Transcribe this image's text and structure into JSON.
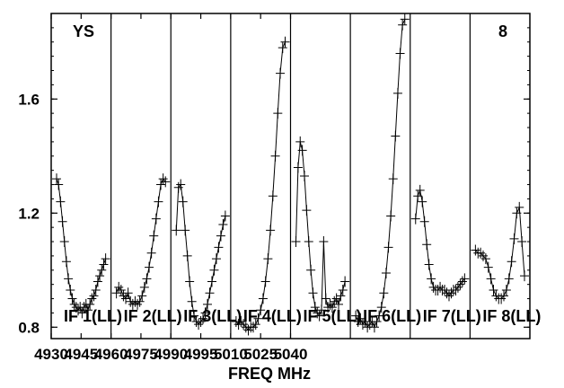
{
  "chart_data": {
    "type": "line",
    "title": "",
    "xlabel": "FREQ MHz",
    "ylabel": "",
    "corner_left_label": "YS",
    "corner_right_label": "8",
    "ylim": [
      0.76,
      1.9
    ],
    "yticks": [
      0.8,
      1.2,
      1.6
    ],
    "ytick_labels": [
      "0.8",
      "1.2",
      "1.6"
    ],
    "xtick_labels": [
      "4930",
      "4945",
      "4960",
      "4975",
      "4990",
      "4995",
      "5010",
      "5025",
      "5040"
    ],
    "grid": false,
    "legend": "none",
    "colors": {
      "line": "#000000",
      "marker": "#000000",
      "frame": "#000000",
      "background": "#ffffff"
    },
    "panels": [
      {
        "name": "IF 1(LL)",
        "points": [
          [
            4930.0,
            1.32
          ],
          [
            4930.5,
            1.3
          ],
          [
            4931.0,
            1.24
          ],
          [
            4931.5,
            1.17
          ],
          [
            4932.0,
            1.1
          ],
          [
            4932.5,
            1.03
          ],
          [
            4933.0,
            0.97
          ],
          [
            4933.5,
            0.93
          ],
          [
            4934.0,
            0.9
          ],
          [
            4934.5,
            0.88
          ],
          [
            4935.0,
            0.87
          ],
          [
            4935.5,
            0.86
          ],
          [
            4936.0,
            0.87
          ],
          [
            4936.5,
            0.85
          ],
          [
            4937.0,
            0.87
          ],
          [
            4937.5,
            0.88
          ],
          [
            4938.0,
            0.86
          ],
          [
            4938.5,
            0.88
          ],
          [
            4939.0,
            0.9
          ],
          [
            4939.5,
            0.91
          ],
          [
            4940.0,
            0.93
          ],
          [
            4940.5,
            0.96
          ],
          [
            4941.0,
            0.98
          ],
          [
            4941.5,
            1.0
          ],
          [
            4942.0,
            1.02
          ],
          [
            4942.5,
            1.04
          ]
        ]
      },
      {
        "name": "IF 2(LL)",
        "points": [
          [
            4945.5,
            0.92
          ],
          [
            4946.0,
            0.94
          ],
          [
            4946.5,
            0.93
          ],
          [
            4947.0,
            0.91
          ],
          [
            4947.5,
            0.9
          ],
          [
            4948.0,
            0.92
          ],
          [
            4948.5,
            0.89
          ],
          [
            4949.0,
            0.88
          ],
          [
            4949.5,
            0.89
          ],
          [
            4950.0,
            0.88
          ],
          [
            4950.5,
            0.89
          ],
          [
            4951.0,
            0.91
          ],
          [
            4951.5,
            0.94
          ],
          [
            4952.0,
            0.97
          ],
          [
            4952.5,
            1.01
          ],
          [
            4953.0,
            1.06
          ],
          [
            4953.5,
            1.12
          ],
          [
            4954.0,
            1.18
          ],
          [
            4954.5,
            1.24
          ],
          [
            4955.0,
            1.3
          ],
          [
            4955.5,
            1.32
          ],
          [
            4956.0,
            1.31
          ]
        ]
      },
      {
        "name": "IF 3(LL)",
        "points": [
          [
            4960.5,
            1.14
          ],
          [
            4961.0,
            1.29
          ],
          [
            4961.5,
            1.3
          ],
          [
            4962.0,
            1.24
          ],
          [
            4962.5,
            1.14
          ],
          [
            4963.0,
            1.05
          ],
          [
            4963.5,
            0.96
          ],
          [
            4964.0,
            0.89
          ],
          [
            4964.5,
            0.84
          ],
          [
            4965.0,
            0.82
          ],
          [
            4965.5,
            0.81
          ],
          [
            4966.0,
            0.82
          ],
          [
            4966.5,
            0.83
          ],
          [
            4967.0,
            0.85
          ],
          [
            4967.5,
            0.88
          ],
          [
            4968.0,
            0.92
          ],
          [
            4968.5,
            0.96
          ],
          [
            4969.0,
            1.0
          ],
          [
            4969.5,
            1.04
          ],
          [
            4970.0,
            1.08
          ],
          [
            4970.5,
            1.12
          ],
          [
            4971.0,
            1.16
          ],
          [
            4971.5,
            1.19
          ]
        ]
      },
      {
        "name": "IF 4(LL)",
        "points": [
          [
            4975.5,
            0.82
          ],
          [
            4976.0,
            0.81
          ],
          [
            4976.5,
            0.82
          ],
          [
            4977.0,
            0.81
          ],
          [
            4977.5,
            0.8
          ],
          [
            4978.0,
            0.79
          ],
          [
            4978.5,
            0.8
          ],
          [
            4979.0,
            0.8
          ],
          [
            4979.5,
            0.81
          ],
          [
            4980.0,
            0.83
          ],
          [
            4980.5,
            0.86
          ],
          [
            4981.0,
            0.9
          ],
          [
            4981.5,
            0.96
          ],
          [
            4982.0,
            1.04
          ],
          [
            4982.5,
            1.14
          ],
          [
            4983.0,
            1.26
          ],
          [
            4983.5,
            1.4
          ],
          [
            4984.0,
            1.55
          ],
          [
            4984.5,
            1.69
          ],
          [
            4985.0,
            1.78
          ],
          [
            4985.5,
            1.8
          ]
        ]
      },
      {
        "name": "IF 5(LL)",
        "points": [
          [
            4990.5,
            1.1
          ],
          [
            4991.0,
            1.36
          ],
          [
            4991.5,
            1.45
          ],
          [
            4992.0,
            1.42
          ],
          [
            4992.5,
            1.33
          ],
          [
            4993.0,
            1.21
          ],
          [
            4993.5,
            1.1
          ],
          [
            4994.0,
            1.0
          ],
          [
            4994.5,
            0.92
          ],
          [
            4995.0,
            0.87
          ],
          [
            4995.5,
            0.85
          ],
          [
            4996.0,
            0.84
          ],
          [
            4996.5,
            0.86
          ],
          [
            4997.0,
            1.1
          ],
          [
            4997.5,
            0.9
          ],
          [
            4998.0,
            0.87
          ],
          [
            4998.5,
            0.88
          ],
          [
            4999.0,
            0.87
          ],
          [
            4999.5,
            0.89
          ],
          [
            5000.0,
            0.9
          ],
          [
            5000.5,
            0.88
          ],
          [
            5001.0,
            0.91
          ],
          [
            5001.5,
            0.93
          ],
          [
            5002.0,
            0.96
          ]
        ]
      },
      {
        "name": "IF 6(LL)",
        "points": [
          [
            5005.0,
            0.84
          ],
          [
            5005.5,
            0.82
          ],
          [
            5006.0,
            0.83
          ],
          [
            5006.5,
            0.81
          ],
          [
            5007.0,
            0.82
          ],
          [
            5007.5,
            0.8
          ],
          [
            5008.0,
            0.81
          ],
          [
            5008.5,
            0.82
          ],
          [
            5009.0,
            0.8
          ],
          [
            5009.5,
            0.82
          ],
          [
            5010.0,
            0.84
          ],
          [
            5010.5,
            0.87
          ],
          [
            5011.0,
            0.92
          ],
          [
            5011.5,
            0.99
          ],
          [
            5012.0,
            1.08
          ],
          [
            5012.5,
            1.19
          ],
          [
            5013.0,
            1.32
          ],
          [
            5013.5,
            1.47
          ],
          [
            5014.0,
            1.62
          ],
          [
            5014.5,
            1.76
          ],
          [
            5015.0,
            1.86
          ],
          [
            5015.5,
            1.88
          ]
        ]
      },
      {
        "name": "IF 7(LL)",
        "points": [
          [
            5019.5,
            1.18
          ],
          [
            5020.0,
            1.26
          ],
          [
            5020.5,
            1.28
          ],
          [
            5021.0,
            1.24
          ],
          [
            5021.5,
            1.17
          ],
          [
            5022.0,
            1.09
          ],
          [
            5022.5,
            1.02
          ],
          [
            5023.0,
            0.97
          ],
          [
            5023.5,
            0.94
          ],
          [
            5024.0,
            0.93
          ],
          [
            5024.5,
            0.93
          ],
          [
            5025.0,
            0.94
          ],
          [
            5025.5,
            0.93
          ],
          [
            5026.0,
            0.93
          ],
          [
            5026.5,
            0.92
          ],
          [
            5027.0,
            0.91
          ],
          [
            5027.5,
            0.92
          ],
          [
            5028.0,
            0.93
          ],
          [
            5028.5,
            0.93
          ],
          [
            5029.0,
            0.94
          ],
          [
            5029.5,
            0.95
          ],
          [
            5030.0,
            0.96
          ],
          [
            5030.5,
            0.97
          ]
        ]
      },
      {
        "name": "IF 8(LL)",
        "points": [
          [
            5035.0,
            1.07
          ],
          [
            5035.5,
            1.06
          ],
          [
            5036.0,
            1.06
          ],
          [
            5036.5,
            1.05
          ],
          [
            5037.0,
            1.04
          ],
          [
            5037.5,
            1.01
          ],
          [
            5038.0,
            0.97
          ],
          [
            5038.5,
            0.93
          ],
          [
            5039.0,
            0.91
          ],
          [
            5039.5,
            0.9
          ],
          [
            5040.0,
            0.9
          ],
          [
            5040.5,
            0.91
          ],
          [
            5041.0,
            0.93
          ],
          [
            5041.5,
            0.97
          ],
          [
            5042.0,
            1.03
          ],
          [
            5042.5,
            1.11
          ],
          [
            5043.0,
            1.2
          ],
          [
            5043.5,
            1.22
          ],
          [
            5044.0,
            1.1
          ],
          [
            5044.5,
            0.98
          ]
        ]
      }
    ]
  }
}
